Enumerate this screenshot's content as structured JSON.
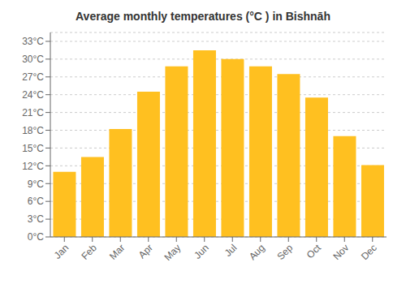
{
  "chart_data": {
    "type": "bar",
    "title": "Average monthly temperatures (°C ) in Bishnāh",
    "categories": [
      "Jan",
      "Feb",
      "Mar",
      "Apr",
      "May",
      "Jun",
      "Jul",
      "Aug",
      "Sep",
      "Oct",
      "Nov",
      "Dec"
    ],
    "values": [
      11.0,
      13.5,
      18.2,
      24.5,
      28.8,
      31.5,
      30.0,
      28.8,
      27.5,
      23.5,
      17.0,
      12.1
    ],
    "color": "#FFC020",
    "ylim": [
      0,
      34.5
    ],
    "yticks": [
      {
        "value": 0,
        "label": "0°C"
      },
      {
        "value": 3,
        "label": "3°C"
      },
      {
        "value": 6,
        "label": "6°C"
      },
      {
        "value": 9,
        "label": "9°C"
      },
      {
        "value": 12,
        "label": "12°C"
      },
      {
        "value": 15,
        "label": "15°C"
      },
      {
        "value": 18,
        "label": "18°C"
      },
      {
        "value": 21,
        "label": "21°C"
      },
      {
        "value": 24,
        "label": "24°C"
      },
      {
        "value": 27,
        "label": "27°C"
      },
      {
        "value": 30,
        "label": "30°C"
      },
      {
        "value": 33,
        "label": "33°C"
      }
    ],
    "grid": true
  }
}
